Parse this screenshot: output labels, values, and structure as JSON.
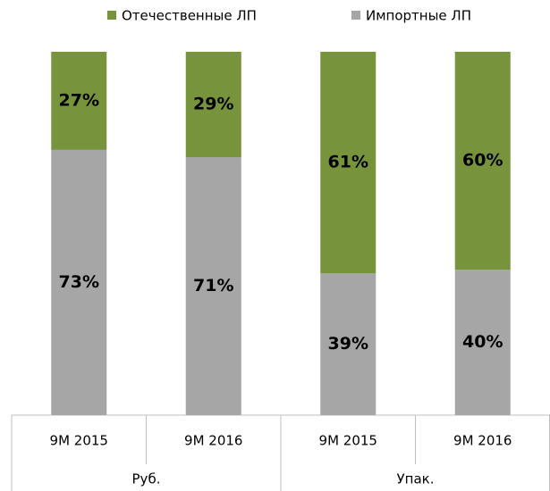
{
  "chart_data": {
    "type": "stacked_bar_100",
    "groups": [
      {
        "name": "Руб.",
        "categories": [
          "9M 2015",
          "9M 2016"
        ]
      },
      {
        "name": "Упак.",
        "categories": [
          "9M 2015",
          "9M 2016"
        ]
      }
    ],
    "series": [
      {
        "name": "Отечественные ЛП",
        "color": "#77933c",
        "values": [
          27,
          29,
          61,
          60
        ],
        "value_labels": [
          "27%",
          "29%",
          "61%",
          "60%"
        ]
      },
      {
        "name": "Импортные ЛП",
        "color": "#a6a6a6",
        "values": [
          73,
          71,
          39,
          40
        ],
        "value_labels": [
          "73%",
          "71%",
          "39%",
          "40%"
        ]
      }
    ],
    "legend": "top"
  }
}
